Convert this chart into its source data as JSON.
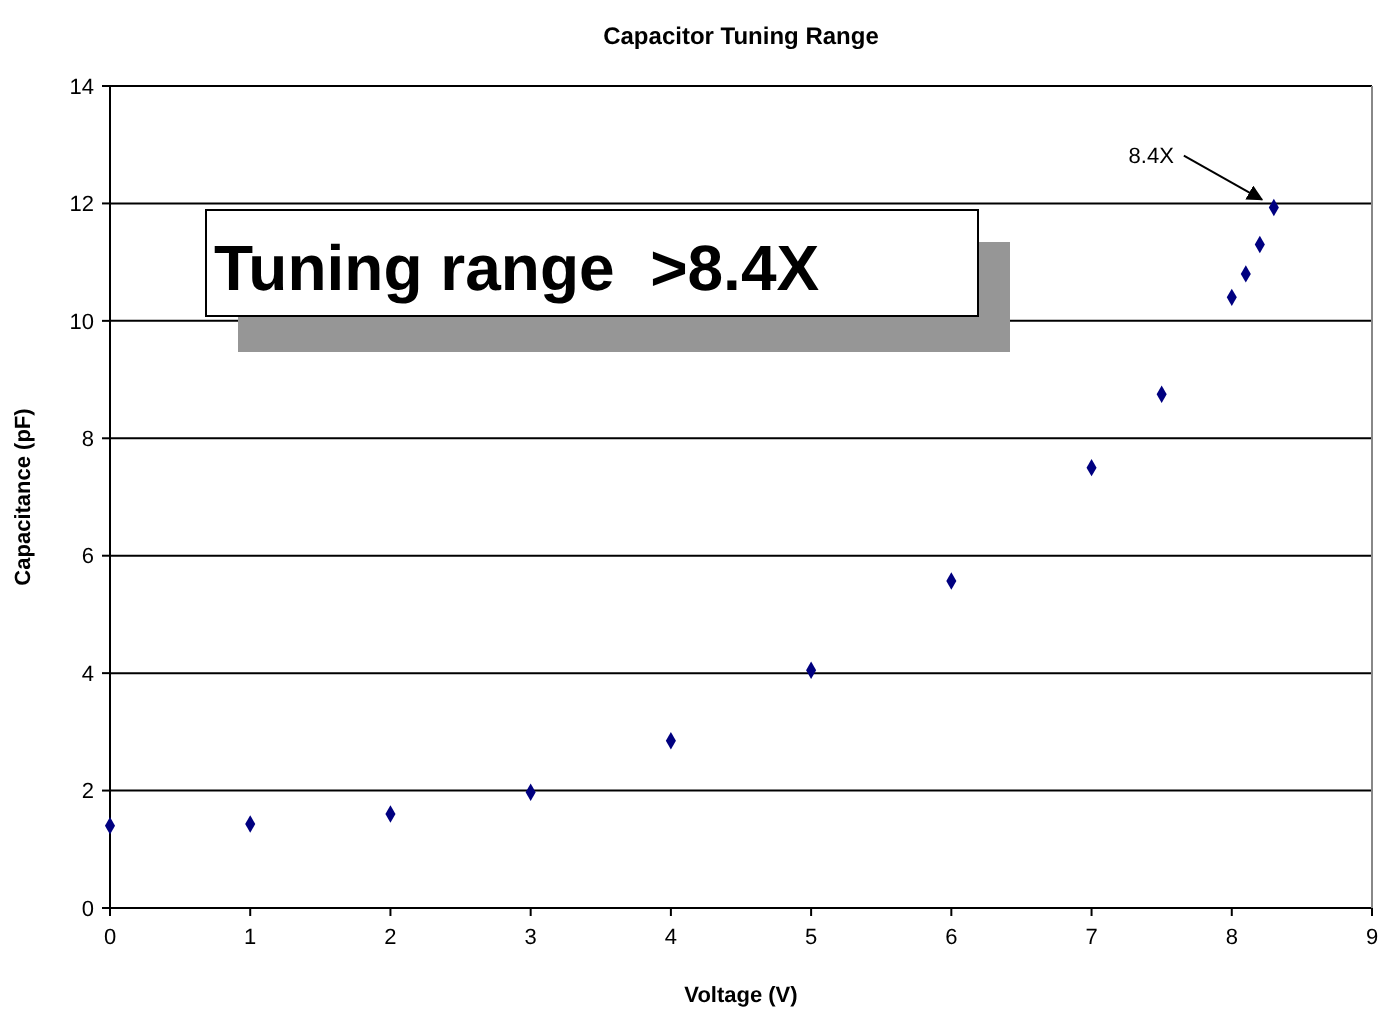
{
  "chart_data": {
    "type": "scatter",
    "title": "Capacitor Tuning Range",
    "xlabel": "Voltage (V)",
    "ylabel": "Capacitance (pF)",
    "x": [
      0,
      1,
      2,
      3,
      4,
      5,
      6,
      7,
      7.5,
      8,
      8.1,
      8.2,
      8.3
    ],
    "series": [
      {
        "color": "#000080",
        "values": [
          1.4,
          1.43,
          1.6,
          1.97,
          2.85,
          4.05,
          5.57,
          7.5,
          8.75,
          10.4,
          10.8,
          11.3,
          11.93
        ]
      }
    ],
    "xlim": [
      0,
      9
    ],
    "xticks": [
      0,
      1,
      2,
      3,
      4,
      5,
      6,
      7,
      8,
      9
    ],
    "ylim": [
      0,
      14
    ],
    "yticks": [
      0,
      2,
      4,
      6,
      8,
      10,
      12,
      14
    ],
    "grid": "y",
    "marker": "diamond",
    "annotations": [
      {
        "text": "8.4X",
        "x": 8.3,
        "y": 11.93
      },
      "Tuning range  >8.4X"
    ]
  }
}
